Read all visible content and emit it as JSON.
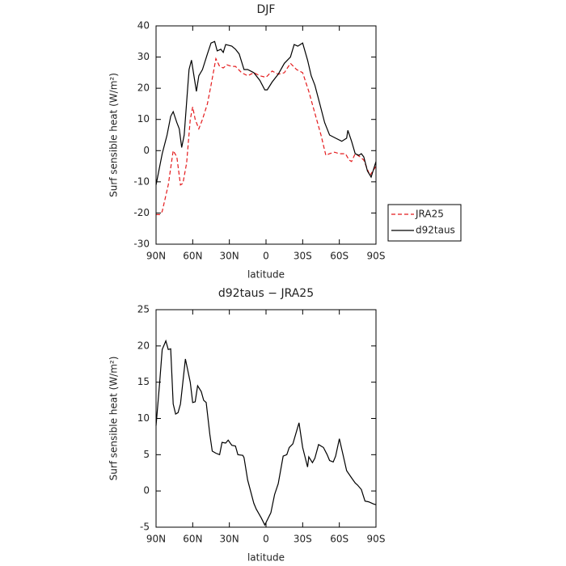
{
  "chart_data": [
    {
      "type": "line",
      "title": "DJF",
      "xlabel": "latitude",
      "ylabel": "Surf sensible heat (W/m²)",
      "xlim": [
        90,
        -90
      ],
      "xticks": [
        {
          "value": 90,
          "label": "90N"
        },
        {
          "value": 60,
          "label": "60N"
        },
        {
          "value": 30,
          "label": "30N"
        },
        0,
        {
          "value": -30,
          "label": "30S"
        },
        {
          "value": -60,
          "label": "60S"
        },
        {
          "value": -90,
          "label": "90S"
        }
      ],
      "ylim": [
        -30,
        40
      ],
      "yticks": [
        -30,
        -20,
        -10,
        0,
        10,
        20,
        30,
        40
      ],
      "legend": "right",
      "series": [
        {
          "name": "JRA25",
          "color": "#e41a1c",
          "dash": "dashed",
          "x": [
            90,
            87,
            85,
            80,
            76,
            73,
            70,
            68,
            65,
            62,
            60,
            58,
            55,
            52,
            48,
            45,
            41,
            38,
            35,
            32,
            28,
            25,
            20,
            15,
            10,
            5,
            0,
            -5,
            -10,
            -15,
            -20,
            -25,
            -30,
            -35,
            -40,
            -45,
            -49,
            -52,
            -56,
            -60,
            -65,
            -68,
            -70,
            -73,
            -77,
            -80,
            -85,
            -90
          ],
          "values": [
            -20.5,
            -20.5,
            -19.5,
            -11,
            0,
            -2,
            -11,
            -10.5,
            -4,
            10,
            14,
            10,
            7,
            10,
            15,
            21,
            29.5,
            27,
            26.5,
            27.5,
            27,
            27,
            25,
            24,
            25,
            24,
            23.5,
            25.5,
            24.5,
            25,
            28,
            26,
            25,
            19,
            12,
            5,
            -1.5,
            -1,
            -0.5,
            -1,
            -1,
            -3,
            -3.5,
            -1,
            -2,
            -3,
            -8,
            -5
          ]
        },
        {
          "name": "d92taus",
          "color": "#000000",
          "dash": "solid",
          "x": [
            90,
            85,
            81,
            78,
            76,
            73,
            71,
            69,
            67,
            63,
            61,
            57,
            55,
            52,
            48,
            45,
            42,
            40,
            37,
            35,
            33,
            28,
            25,
            22,
            18,
            15,
            10,
            5,
            1,
            -1,
            -5,
            -10,
            -15,
            -20,
            -23,
            -26,
            -30,
            -34,
            -37,
            -40,
            -44,
            -48,
            -52,
            -57,
            -62,
            -66,
            -67,
            -70,
            -73,
            -76,
            -78,
            -80,
            -83,
            -86,
            -90
          ],
          "values": [
            -11,
            -1,
            5,
            11,
            12.5,
            9,
            7,
            1,
            5,
            26,
            29,
            19,
            24,
            26,
            31,
            34.5,
            35,
            32,
            32.5,
            31.5,
            34,
            33.5,
            32.5,
            31,
            26,
            26,
            25,
            22.5,
            19.5,
            19.5,
            22,
            24.5,
            28,
            30,
            34,
            33.5,
            34.5,
            29,
            24,
            21,
            15,
            9,
            5,
            4,
            3,
            4,
            6.5,
            3,
            -1,
            -1.5,
            -1,
            -2,
            -6.5,
            -8.5,
            -3.5
          ]
        }
      ]
    },
    {
      "type": "line",
      "title": "d92taus − JRA25",
      "xlabel": "latitude",
      "ylabel": "Surf sensible heat (W/m²)",
      "xlim": [
        90,
        -90
      ],
      "xticks": [
        {
          "value": 90,
          "label": "90N"
        },
        {
          "value": 60,
          "label": "60N"
        },
        {
          "value": 30,
          "label": "30N"
        },
        0,
        {
          "value": -30,
          "label": "30S"
        },
        {
          "value": -60,
          "label": "60S"
        },
        {
          "value": -90,
          "label": "90S"
        }
      ],
      "ylim": [
        -5,
        25
      ],
      "yticks": [
        -5,
        0,
        5,
        10,
        15,
        20,
        25
      ],
      "series": [
        {
          "color": "#000000",
          "dash": "solid",
          "x": [
            90,
            87,
            85,
            82,
            80,
            78,
            76,
            74,
            72,
            70,
            66,
            62,
            60,
            58,
            56,
            53,
            51,
            49,
            46,
            44,
            41,
            38,
            36,
            33,
            31,
            28,
            25,
            23,
            19,
            18,
            15,
            10,
            8,
            4,
            1,
            -4,
            -7,
            -10,
            -14,
            -17,
            -19,
            -22,
            -27,
            -30,
            -34,
            -35,
            -38,
            -40,
            -43,
            -47,
            -50,
            -52,
            -55,
            -57,
            -60,
            -63,
            -66,
            -70,
            -73,
            -75,
            -78,
            -81,
            -84,
            -88,
            -90
          ],
          "values": [
            9,
            15,
            19.5,
            20.7,
            19.5,
            19.6,
            12,
            10.6,
            10.8,
            12,
            18.2,
            15,
            12.2,
            12.3,
            14.5,
            13.7,
            12.5,
            12.2,
            7.8,
            5.5,
            5.2,
            5,
            6.7,
            6.6,
            7,
            6.3,
            6.2,
            5,
            4.9,
            4.6,
            1.5,
            -1.7,
            -2.5,
            -3.7,
            -4.7,
            -3,
            -0.5,
            1,
            4.8,
            5,
            6,
            6.5,
            9.4,
            6,
            3.3,
            4.7,
            3.9,
            4.5,
            6.4,
            6,
            5,
            4.2,
            4,
            4.8,
            7.2,
            5,
            2.8,
            1.8,
            1.1,
            0.8,
            0.2,
            -1.4,
            -1.5,
            -1.8,
            -1.9
          ]
        }
      ]
    }
  ]
}
